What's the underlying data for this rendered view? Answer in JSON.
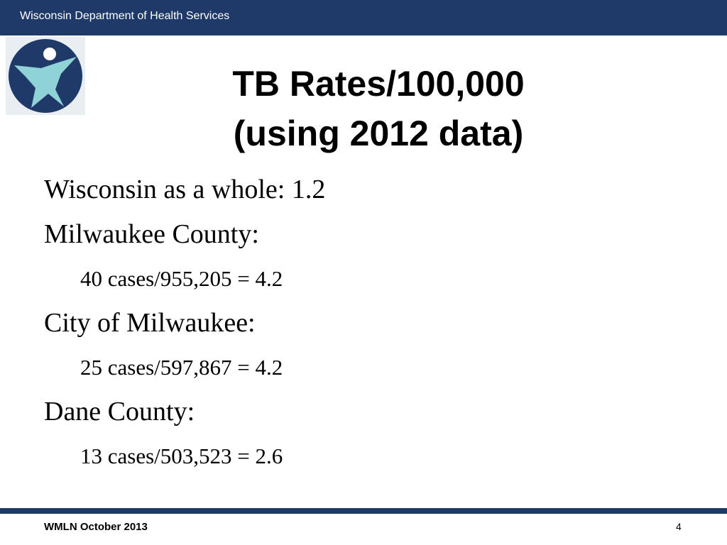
{
  "header": {
    "title": "Wisconsin Department of Health Services"
  },
  "slide": {
    "title": [
      "TB Rates/100,000",
      "(using 2012 data)"
    ],
    "bullets": [
      {
        "text": "Wisconsin as a whole: 1.2"
      },
      {
        "text": "Milwaukee County:",
        "items": [
          "40 cases/955,205 = 4.2"
        ]
      },
      {
        "text": "City of Milwaukee:",
        "items": [
          "25 cases/597,867 = 4.2"
        ]
      },
      {
        "text": "Dane County:",
        "items": [
          "13 cases/503,523 = 2.6"
        ]
      }
    ]
  },
  "footer": {
    "text": "WMLN October 2013",
    "page": "4"
  }
}
